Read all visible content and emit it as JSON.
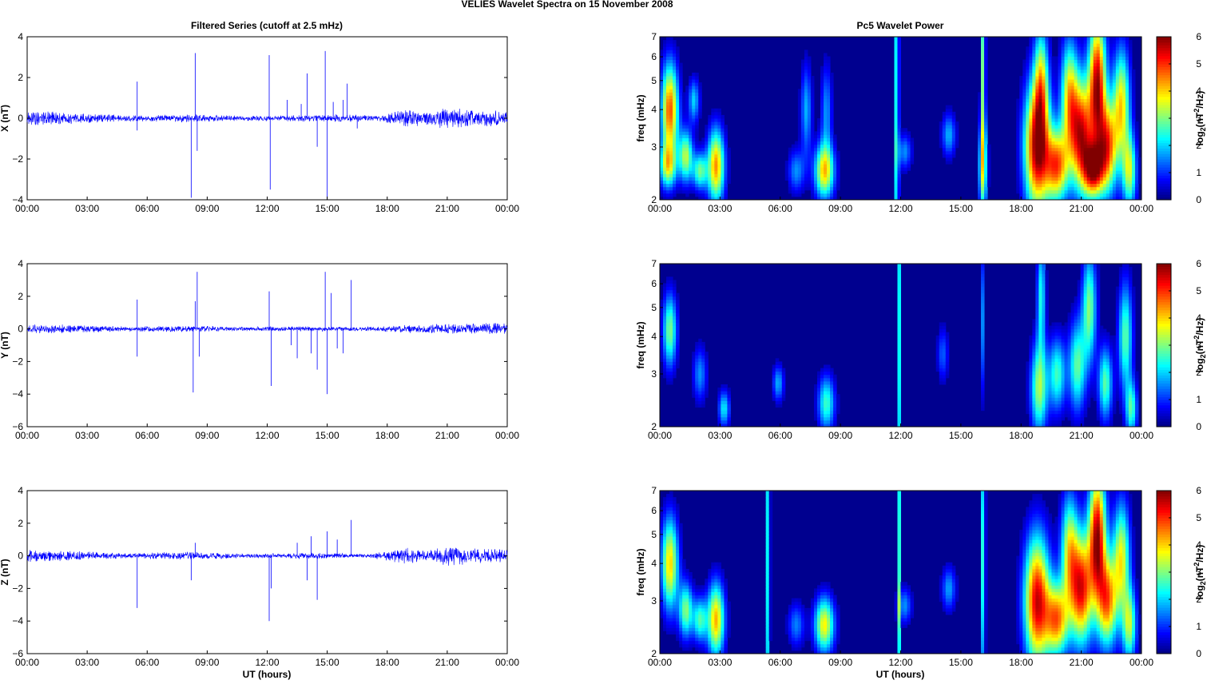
{
  "figure": {
    "title": "VELIES Wavelet Spectra on 15 November  2008",
    "left_column_title": "Filtered Series (cutoff at 2.5 mHz)",
    "right_column_title": "Pc5 Wavelet Power",
    "xlabel": "UT (hours)"
  },
  "colors": {
    "series_line": "#0000ff",
    "axes": "#000000",
    "spectrogram_background": "#00008f",
    "colormap": "jet"
  },
  "chart_data": [
    {
      "type": "line",
      "component": "X",
      "ylabel": "X (nT)",
      "ylim": [
        -4,
        4
      ],
      "yticks": [
        -4,
        -2,
        0,
        2,
        4
      ],
      "xlim_hours": [
        0,
        24
      ],
      "xticks": [
        "00:00",
        "03:00",
        "06:00",
        "09:00",
        "12:00",
        "15:00",
        "18:00",
        "21:00",
        "00:00"
      ],
      "grid": false,
      "noise_envelope": [
        {
          "t": 0,
          "amp": 0.3
        },
        {
          "t": 1.5,
          "amp": 0.25
        },
        {
          "t": 2.5,
          "amp": 0.2
        },
        {
          "t": 5,
          "amp": 0.12
        },
        {
          "t": 8,
          "amp": 0.15
        },
        {
          "t": 11,
          "amp": 0.1
        },
        {
          "t": 14,
          "amp": 0.12
        },
        {
          "t": 16,
          "amp": 0.15
        },
        {
          "t": 17.5,
          "amp": 0.1
        },
        {
          "t": 19,
          "amp": 0.35
        },
        {
          "t": 20,
          "amp": 0.25
        },
        {
          "t": 21,
          "amp": 0.45
        },
        {
          "t": 22,
          "amp": 0.35
        },
        {
          "t": 24,
          "amp": 0.3
        }
      ],
      "spikes": [
        {
          "t": 5.5,
          "y": 1.8
        },
        {
          "t": 5.5,
          "y": -0.6
        },
        {
          "t": 8.2,
          "y": -3.9
        },
        {
          "t": 8.4,
          "y": 3.2
        },
        {
          "t": 8.5,
          "y": -1.6
        },
        {
          "t": 12.1,
          "y": 3.1
        },
        {
          "t": 12.15,
          "y": -3.5
        },
        {
          "t": 13.0,
          "y": 0.9
        },
        {
          "t": 13.7,
          "y": 0.7
        },
        {
          "t": 14.0,
          "y": 2.2
        },
        {
          "t": 14.5,
          "y": -1.4
        },
        {
          "t": 14.9,
          "y": 3.3
        },
        {
          "t": 15.0,
          "y": -4.0
        },
        {
          "t": 15.3,
          "y": 0.8
        },
        {
          "t": 15.8,
          "y": 0.9
        },
        {
          "t": 16.0,
          "y": 1.7
        },
        {
          "t": 16.5,
          "y": -0.5
        }
      ]
    },
    {
      "type": "line",
      "component": "Y",
      "ylabel": "Y (nT)",
      "ylim": [
        -6,
        4
      ],
      "yticks": [
        -6,
        -4,
        -2,
        0,
        2,
        4
      ],
      "xlim_hours": [
        0,
        24
      ],
      "xticks": [
        "00:00",
        "03:00",
        "06:00",
        "09:00",
        "12:00",
        "15:00",
        "18:00",
        "21:00",
        "00:00"
      ],
      "grid": false,
      "noise_envelope": [
        {
          "t": 0,
          "amp": 0.25
        },
        {
          "t": 2,
          "amp": 0.2
        },
        {
          "t": 5,
          "amp": 0.12
        },
        {
          "t": 8,
          "amp": 0.15
        },
        {
          "t": 11,
          "amp": 0.1
        },
        {
          "t": 14,
          "amp": 0.12
        },
        {
          "t": 17,
          "amp": 0.1
        },
        {
          "t": 19,
          "amp": 0.2
        },
        {
          "t": 21,
          "amp": 0.25
        },
        {
          "t": 24,
          "amp": 0.3
        }
      ],
      "spikes": [
        {
          "t": 5.5,
          "y": 1.8
        },
        {
          "t": 5.5,
          "y": -1.7
        },
        {
          "t": 8.3,
          "y": -3.9
        },
        {
          "t": 8.4,
          "y": 1.7
        },
        {
          "t": 8.5,
          "y": 3.5
        },
        {
          "t": 8.6,
          "y": -1.7
        },
        {
          "t": 12.1,
          "y": 2.3
        },
        {
          "t": 12.2,
          "y": -3.5
        },
        {
          "t": 13.2,
          "y": -1.0
        },
        {
          "t": 13.5,
          "y": -1.8
        },
        {
          "t": 14.2,
          "y": -1.5
        },
        {
          "t": 14.5,
          "y": -2.5
        },
        {
          "t": 14.9,
          "y": 3.5
        },
        {
          "t": 15.0,
          "y": -4.0
        },
        {
          "t": 15.2,
          "y": 2.2
        },
        {
          "t": 15.5,
          "y": -1.2
        },
        {
          "t": 15.8,
          "y": -1.5
        },
        {
          "t": 16.2,
          "y": 3.0
        }
      ]
    },
    {
      "type": "line",
      "component": "Z",
      "ylabel": "Z (nT)",
      "ylim": [
        -6,
        4
      ],
      "yticks": [
        -6,
        -4,
        -2,
        0,
        2,
        4
      ],
      "xlim_hours": [
        0,
        24
      ],
      "xticks": [
        "00:00",
        "03:00",
        "06:00",
        "09:00",
        "12:00",
        "15:00",
        "18:00",
        "21:00",
        "00:00"
      ],
      "grid": false,
      "noise_envelope": [
        {
          "t": 0,
          "amp": 0.3
        },
        {
          "t": 2,
          "amp": 0.25
        },
        {
          "t": 5,
          "amp": 0.12
        },
        {
          "t": 8,
          "amp": 0.2
        },
        {
          "t": 11,
          "amp": 0.1
        },
        {
          "t": 14,
          "amp": 0.15
        },
        {
          "t": 17,
          "amp": 0.1
        },
        {
          "t": 19,
          "amp": 0.4
        },
        {
          "t": 20,
          "amp": 0.25
        },
        {
          "t": 21,
          "amp": 0.5
        },
        {
          "t": 22,
          "amp": 0.4
        },
        {
          "t": 24,
          "amp": 0.3
        }
      ],
      "spikes": [
        {
          "t": 5.5,
          "y": -3.2
        },
        {
          "t": 8.2,
          "y": -1.5
        },
        {
          "t": 8.4,
          "y": 0.8
        },
        {
          "t": 12.1,
          "y": -4.0
        },
        {
          "t": 12.2,
          "y": -2.0
        },
        {
          "t": 13.5,
          "y": 0.8
        },
        {
          "t": 14.0,
          "y": -1.5
        },
        {
          "t": 14.2,
          "y": 1.2
        },
        {
          "t": 14.5,
          "y": -2.7
        },
        {
          "t": 15.0,
          "y": 1.5
        },
        {
          "t": 15.5,
          "y": 1.0
        },
        {
          "t": 16.2,
          "y": 2.2
        }
      ]
    },
    {
      "type": "heatmap",
      "component": "X",
      "ylabel": "freq (mHz)",
      "yscale": "log",
      "ylim": [
        2,
        7
      ],
      "yticks": [
        2,
        3,
        4,
        5,
        6,
        7
      ],
      "xlim_hours": [
        0,
        24
      ],
      "xticks": [
        "00:00",
        "03:00",
        "06:00",
        "09:00",
        "12:00",
        "15:00",
        "18:00",
        "21:00",
        "00:00"
      ],
      "colorbar": {
        "label_base": "log",
        "label_sub": "2",
        "label_open": "(nT",
        "label_sup": "2",
        "label_close": "/Hz)",
        "range": [
          0,
          6
        ],
        "ticks": [
          0,
          1,
          2,
          3,
          4,
          5,
          6
        ]
      },
      "blobs": [
        {
          "t": 0.5,
          "f": 4.0,
          "dt": 0.3,
          "lf": 0.25,
          "v": 4.8
        },
        {
          "t": 0.4,
          "f": 2.6,
          "dt": 0.3,
          "lf": 0.12,
          "v": 3.2
        },
        {
          "t": 1.3,
          "f": 2.8,
          "dt": 0.25,
          "lf": 0.14,
          "v": 3.3
        },
        {
          "t": 1.7,
          "f": 4.3,
          "dt": 0.2,
          "lf": 0.12,
          "v": 2.0
        },
        {
          "t": 2.0,
          "f": 2.5,
          "dt": 0.25,
          "lf": 0.1,
          "v": 2.8
        },
        {
          "t": 2.8,
          "f": 2.6,
          "dt": 0.3,
          "lf": 0.2,
          "v": 4.4
        },
        {
          "t": 6.8,
          "f": 2.5,
          "dt": 0.3,
          "lf": 0.12,
          "v": 1.6
        },
        {
          "t": 7.3,
          "f": 4.0,
          "dt": 0.2,
          "lf": 0.25,
          "v": 1.8
        },
        {
          "t": 8.2,
          "f": 2.5,
          "dt": 0.35,
          "lf": 0.15,
          "v": 4.0
        },
        {
          "t": 8.3,
          "f": 4.0,
          "dt": 0.2,
          "lf": 0.25,
          "v": 1.6
        },
        {
          "t": 11.8,
          "f": 4.0,
          "dt": 0.08,
          "lf": 1.5,
          "v": 2.6
        },
        {
          "t": 12.2,
          "f": 2.9,
          "dt": 0.25,
          "lf": 0.1,
          "v": 1.6
        },
        {
          "t": 14.4,
          "f": 3.3,
          "dt": 0.25,
          "lf": 0.12,
          "v": 1.8
        },
        {
          "t": 16.1,
          "f": 2.6,
          "dt": 0.15,
          "lf": 0.25,
          "v": 3.2
        },
        {
          "t": 16.1,
          "f": 5.5,
          "dt": 0.08,
          "lf": 0.5,
          "v": 3.0
        },
        {
          "t": 18.8,
          "f": 3.0,
          "dt": 0.45,
          "lf": 0.35,
          "v": 5.8
        },
        {
          "t": 19.8,
          "f": 2.6,
          "dt": 0.4,
          "lf": 0.2,
          "v": 4.5
        },
        {
          "t": 20.4,
          "f": 4.5,
          "dt": 0.3,
          "lf": 0.3,
          "v": 3.5
        },
        {
          "t": 21.0,
          "f": 3.3,
          "dt": 0.4,
          "lf": 0.3,
          "v": 5.3
        },
        {
          "t": 21.6,
          "f": 2.5,
          "dt": 0.35,
          "lf": 0.15,
          "v": 4.5
        },
        {
          "t": 21.8,
          "f": 5.0,
          "dt": 0.3,
          "lf": 0.35,
          "v": 5.5
        },
        {
          "t": 22.3,
          "f": 3.0,
          "dt": 0.35,
          "lf": 0.25,
          "v": 4.6
        },
        {
          "t": 23.0,
          "f": 4.2,
          "dt": 0.3,
          "lf": 0.3,
          "v": 3.8
        },
        {
          "t": 23.4,
          "f": 2.5,
          "dt": 0.25,
          "lf": 0.2,
          "v": 3.3
        },
        {
          "t": 19.0,
          "f": 5.0,
          "dt": 0.25,
          "lf": 0.3,
          "v": 3.0
        }
      ]
    },
    {
      "type": "heatmap",
      "component": "Y",
      "ylabel": "freq (mHz)",
      "yscale": "log",
      "ylim": [
        2,
        7
      ],
      "yticks": [
        2,
        3,
        4,
        5,
        6,
        7
      ],
      "xlim_hours": [
        0,
        24
      ],
      "xticks": [
        "00:00",
        "03:00",
        "06:00",
        "09:00",
        "12:00",
        "15:00",
        "18:00",
        "21:00",
        "00:00"
      ],
      "colorbar": {
        "label_base": "log",
        "label_sub": "2",
        "label_open": "(nT",
        "label_sup": "2",
        "label_close": "/Hz)",
        "range": [
          0,
          6
        ],
        "ticks": [
          0,
          1,
          2,
          3,
          4,
          5,
          6
        ]
      },
      "blobs": [
        {
          "t": 0.5,
          "f": 4.2,
          "dt": 0.25,
          "lf": 0.2,
          "v": 3.0
        },
        {
          "t": 2.0,
          "f": 3.0,
          "dt": 0.25,
          "lf": 0.15,
          "v": 1.6
        },
        {
          "t": 3.2,
          "f": 2.3,
          "dt": 0.2,
          "lf": 0.1,
          "v": 2.2
        },
        {
          "t": 5.9,
          "f": 2.8,
          "dt": 0.2,
          "lf": 0.1,
          "v": 1.8
        },
        {
          "t": 8.3,
          "f": 2.4,
          "dt": 0.3,
          "lf": 0.15,
          "v": 2.6
        },
        {
          "t": 11.9,
          "f": 4.0,
          "dt": 0.06,
          "lf": 1.5,
          "v": 2.4
        },
        {
          "t": 14.1,
          "f": 3.5,
          "dt": 0.2,
          "lf": 0.15,
          "v": 1.3
        },
        {
          "t": 16.1,
          "f": 4.5,
          "dt": 0.08,
          "lf": 0.4,
          "v": 1.6
        },
        {
          "t": 18.9,
          "f": 2.7,
          "dt": 0.3,
          "lf": 0.25,
          "v": 3.2
        },
        {
          "t": 19.0,
          "f": 5.5,
          "dt": 0.15,
          "lf": 0.3,
          "v": 2.4
        },
        {
          "t": 19.8,
          "f": 3.0,
          "dt": 0.3,
          "lf": 0.2,
          "v": 2.6
        },
        {
          "t": 20.8,
          "f": 3.2,
          "dt": 0.3,
          "lf": 0.25,
          "v": 2.8
        },
        {
          "t": 21.4,
          "f": 5.0,
          "dt": 0.25,
          "lf": 0.3,
          "v": 3.0
        },
        {
          "t": 22.2,
          "f": 2.8,
          "dt": 0.25,
          "lf": 0.2,
          "v": 2.8
        },
        {
          "t": 23.2,
          "f": 4.0,
          "dt": 0.25,
          "lf": 0.3,
          "v": 2.8
        },
        {
          "t": 23.5,
          "f": 2.3,
          "dt": 0.2,
          "lf": 0.15,
          "v": 2.6
        }
      ]
    },
    {
      "type": "heatmap",
      "component": "Z",
      "ylabel": "freq (mHz)",
      "yscale": "log",
      "ylim": [
        2,
        7
      ],
      "yticks": [
        2,
        3,
        4,
        5,
        6,
        7
      ],
      "xlim_hours": [
        0,
        24
      ],
      "xticks": [
        "00:00",
        "03:00",
        "06:00",
        "09:00",
        "12:00",
        "15:00",
        "18:00",
        "21:00",
        "00:00"
      ],
      "colorbar": {
        "label_base": "log",
        "label_sub": "2",
        "label_open": "(nT",
        "label_sup": "2",
        "label_close": "/Hz)",
        "range": [
          0,
          6
        ],
        "ticks": [
          0,
          1,
          2,
          3,
          4,
          5,
          6
        ]
      },
      "blobs": [
        {
          "t": 0.5,
          "f": 4.0,
          "dt": 0.3,
          "lf": 0.25,
          "v": 4.0
        },
        {
          "t": 1.3,
          "f": 2.8,
          "dt": 0.25,
          "lf": 0.15,
          "v": 3.0
        },
        {
          "t": 2.0,
          "f": 2.6,
          "dt": 0.25,
          "lf": 0.12,
          "v": 2.6
        },
        {
          "t": 2.8,
          "f": 2.6,
          "dt": 0.3,
          "lf": 0.2,
          "v": 4.2
        },
        {
          "t": 5.4,
          "f": 4.0,
          "dt": 0.06,
          "lf": 1.5,
          "v": 2.8
        },
        {
          "t": 6.8,
          "f": 2.5,
          "dt": 0.3,
          "lf": 0.12,
          "v": 1.5
        },
        {
          "t": 8.2,
          "f": 2.5,
          "dt": 0.35,
          "lf": 0.15,
          "v": 3.8
        },
        {
          "t": 11.9,
          "f": 4.0,
          "dt": 0.06,
          "lf": 1.5,
          "v": 2.6
        },
        {
          "t": 12.2,
          "f": 2.9,
          "dt": 0.25,
          "lf": 0.1,
          "v": 1.6
        },
        {
          "t": 14.4,
          "f": 3.3,
          "dt": 0.25,
          "lf": 0.12,
          "v": 1.7
        },
        {
          "t": 16.1,
          "f": 4.2,
          "dt": 0.08,
          "lf": 0.8,
          "v": 2.5
        },
        {
          "t": 18.8,
          "f": 3.0,
          "dt": 0.45,
          "lf": 0.35,
          "v": 5.5
        },
        {
          "t": 19.8,
          "f": 2.6,
          "dt": 0.4,
          "lf": 0.2,
          "v": 4.3
        },
        {
          "t": 20.4,
          "f": 4.5,
          "dt": 0.3,
          "lf": 0.3,
          "v": 3.2
        },
        {
          "t": 21.0,
          "f": 3.3,
          "dt": 0.4,
          "lf": 0.3,
          "v": 5.2
        },
        {
          "t": 21.8,
          "f": 5.0,
          "dt": 0.3,
          "lf": 0.35,
          "v": 5.6
        },
        {
          "t": 22.3,
          "f": 3.0,
          "dt": 0.35,
          "lf": 0.25,
          "v": 4.4
        },
        {
          "t": 23.0,
          "f": 4.2,
          "dt": 0.3,
          "lf": 0.3,
          "v": 3.6
        },
        {
          "t": 23.4,
          "f": 2.5,
          "dt": 0.25,
          "lf": 0.2,
          "v": 3.2
        }
      ]
    }
  ]
}
